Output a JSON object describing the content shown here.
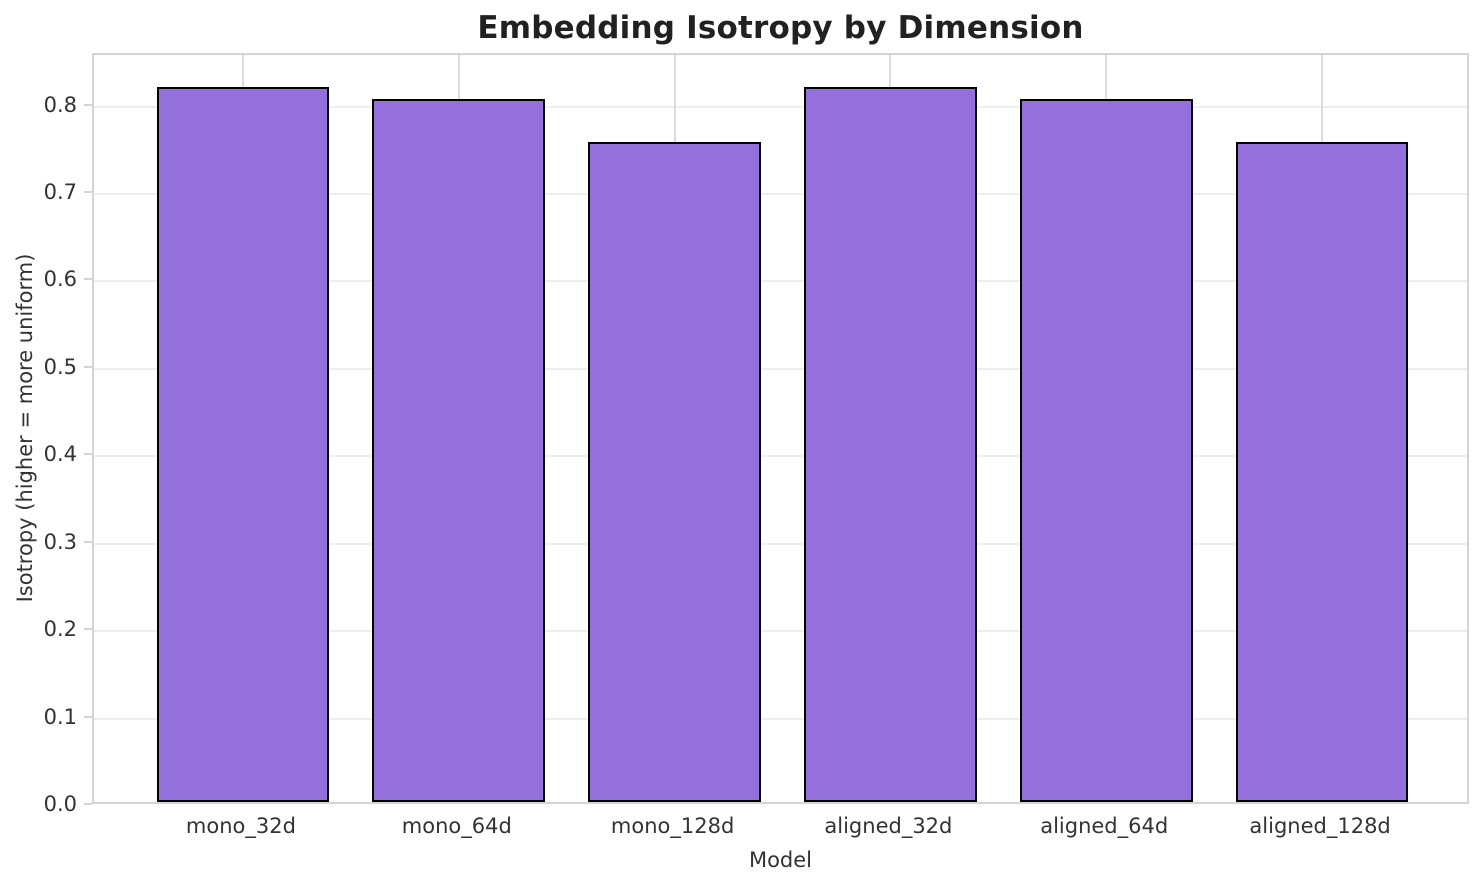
{
  "chart_data": {
    "type": "bar",
    "title": "Embedding Isotropy by Dimension",
    "xlabel": "Model",
    "ylabel": "Isotropy (higher = more uniform)",
    "categories": [
      "mono_32d",
      "mono_64d",
      "mono_128d",
      "aligned_32d",
      "aligned_64d",
      "aligned_128d"
    ],
    "values": [
      0.818,
      0.804,
      0.755,
      0.818,
      0.804,
      0.755
    ],
    "ylim": [
      0,
      0.859
    ],
    "ytick_labels": [
      "0.0",
      "0.1",
      "0.2",
      "0.3",
      "0.4",
      "0.5",
      "0.6",
      "0.7",
      "0.8"
    ],
    "ytick_values": [
      0.0,
      0.1,
      0.2,
      0.3,
      0.4,
      0.5,
      0.6,
      0.7,
      0.8
    ],
    "bar_width_fraction": 0.8,
    "grid": "horizontal and vertical light-gray gridlines, white background",
    "legend": "none",
    "colors": {
      "bar_fill": "#9370DB",
      "bar_edge": "#000000",
      "grid_horizontal": "#EDEDED",
      "grid_vertical": "#DBDBDB",
      "spine": "#D4D4D4",
      "title_text": "#212121",
      "tick_text": "#333333",
      "background": "#FFFFFF"
    }
  }
}
